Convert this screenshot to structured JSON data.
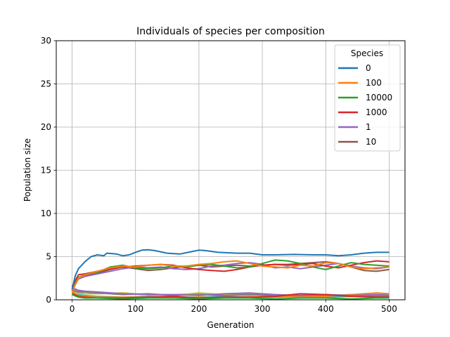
{
  "chart_data": {
    "type": "line",
    "title": "Individuals of species per composition",
    "xlabel": "Generation",
    "ylabel": "Population size",
    "xlim": [
      -25,
      525
    ],
    "ylim": [
      0,
      30
    ],
    "xticks": [
      0,
      100,
      200,
      300,
      400,
      500
    ],
    "yticks": [
      0,
      5,
      10,
      15,
      20,
      25,
      30
    ],
    "grid": true,
    "legend": {
      "title": "Species",
      "placement": "top-right"
    },
    "series": [
      {
        "name": "0",
        "color": "#1f77b4",
        "x": [
          0,
          5,
          10,
          20,
          30,
          40,
          50,
          55,
          70,
          80,
          90,
          100,
          110,
          120,
          130,
          150,
          170,
          190,
          200,
          210,
          230,
          260,
          280,
          300,
          320,
          350,
          380,
          400,
          420,
          440,
          460,
          480,
          500
        ],
        "y": [
          1.2,
          2.8,
          3.6,
          4.4,
          5.0,
          5.2,
          5.1,
          5.4,
          5.3,
          5.1,
          5.2,
          5.5,
          5.75,
          5.8,
          5.7,
          5.4,
          5.3,
          5.6,
          5.75,
          5.7,
          5.5,
          5.4,
          5.4,
          5.2,
          5.2,
          5.25,
          5.2,
          5.2,
          5.1,
          5.2,
          5.4,
          5.5,
          5.5
        ]
      },
      {
        "name": "100",
        "color": "#ff7f0e",
        "x": [
          0,
          10,
          20,
          40,
          60,
          80,
          100,
          120,
          140,
          160,
          180,
          200,
          220,
          240,
          260,
          280,
          300,
          320,
          340,
          360,
          380,
          400,
          420,
          440,
          460,
          480,
          500
        ],
        "y": [
          1.0,
          2.5,
          2.9,
          3.3,
          3.7,
          3.9,
          3.8,
          4.0,
          4.1,
          3.9,
          3.9,
          4.1,
          4.2,
          4.4,
          4.5,
          4.2,
          3.9,
          3.8,
          3.7,
          4.0,
          3.9,
          4.3,
          4.2,
          3.8,
          3.6,
          3.7,
          3.8
        ]
      },
      {
        "name": "10000",
        "color": "#2ca02c",
        "x": [
          0,
          10,
          20,
          40,
          60,
          80,
          100,
          120,
          140,
          160,
          180,
          200,
          220,
          240,
          260,
          280,
          300,
          320,
          340,
          360,
          380,
          400,
          420,
          440,
          460,
          480,
          500
        ],
        "y": [
          1.1,
          2.6,
          2.9,
          3.2,
          3.8,
          4.0,
          3.7,
          3.6,
          3.7,
          3.9,
          3.8,
          4.0,
          4.1,
          3.9,
          3.7,
          3.8,
          4.2,
          4.6,
          4.5,
          4.2,
          3.8,
          3.5,
          3.9,
          4.3,
          4.1,
          4.0,
          3.9
        ]
      },
      {
        "name": "1000",
        "color": "#d62728",
        "x": [
          0,
          10,
          20,
          40,
          60,
          80,
          100,
          120,
          140,
          160,
          180,
          200,
          220,
          240,
          260,
          280,
          300,
          320,
          340,
          360,
          380,
          400,
          420,
          440,
          460,
          480,
          500
        ],
        "y": [
          1.5,
          2.9,
          3.0,
          3.3,
          3.6,
          3.8,
          3.9,
          4.0,
          4.1,
          4.0,
          3.7,
          3.5,
          3.4,
          3.3,
          3.5,
          3.8,
          4.0,
          4.1,
          4.0,
          4.1,
          4.2,
          3.9,
          3.7,
          4.0,
          4.3,
          4.5,
          4.4
        ]
      },
      {
        "name": "1",
        "color": "#9467bd",
        "x": [
          0,
          10,
          20,
          40,
          60,
          80,
          100,
          120,
          140,
          160,
          180,
          200,
          220,
          240,
          260,
          280,
          300,
          320,
          340,
          360,
          380,
          400,
          420,
          440,
          460,
          480,
          500
        ],
        "y": [
          1.2,
          2.4,
          2.7,
          3.0,
          3.3,
          3.6,
          3.8,
          3.7,
          3.8,
          3.6,
          3.5,
          3.6,
          3.9,
          4.0,
          4.2,
          4.3,
          4.1,
          3.7,
          3.8,
          3.6,
          3.8,
          4.0,
          4.2,
          3.9,
          3.7,
          3.6,
          3.8
        ]
      },
      {
        "name": "10",
        "color": "#8c564b",
        "x": [
          0,
          10,
          20,
          40,
          60,
          80,
          100,
          120,
          140,
          160,
          180,
          200,
          220,
          240,
          260,
          280,
          300,
          320,
          340,
          360,
          380,
          400,
          420,
          440,
          460,
          480,
          500
        ],
        "y": [
          1.0,
          2.5,
          2.8,
          3.1,
          3.5,
          3.8,
          3.6,
          3.4,
          3.5,
          3.7,
          3.9,
          4.0,
          3.8,
          3.9,
          4.0,
          3.9,
          4.0,
          4.1,
          4.1,
          4.2,
          4.3,
          4.4,
          4.2,
          3.8,
          3.4,
          3.3,
          3.5
        ]
      }
    ],
    "background_series": [
      {
        "color": "#e377c2",
        "x": [
          0,
          10,
          20,
          40,
          80,
          120,
          160,
          200,
          240,
          280,
          320,
          360,
          400,
          440,
          480,
          500
        ],
        "y": [
          1.3,
          1.0,
          0.9,
          0.8,
          0.7,
          0.6,
          0.6,
          0.7,
          0.6,
          0.7,
          0.6,
          0.5,
          0.6,
          0.5,
          0.6,
          0.6
        ]
      },
      {
        "color": "#bcbd22",
        "x": [
          0,
          10,
          20,
          40,
          80,
          120,
          160,
          200,
          240,
          280,
          320,
          360,
          400,
          440,
          480,
          500
        ],
        "y": [
          1.0,
          0.8,
          0.7,
          0.7,
          0.8,
          0.6,
          0.5,
          0.8,
          0.6,
          0.5,
          0.6,
          0.4,
          0.5,
          0.6,
          0.5,
          0.4
        ]
      },
      {
        "color": "#17becf",
        "x": [
          0,
          10,
          20,
          40,
          80,
          120,
          160,
          200,
          240,
          280,
          320,
          360,
          400,
          440,
          480,
          500
        ],
        "y": [
          0.8,
          0.6,
          0.5,
          0.4,
          0.3,
          0.4,
          0.3,
          0.3,
          0.4,
          0.3,
          0.3,
          0.4,
          0.3,
          0.4,
          0.5,
          0.7
        ]
      },
      {
        "color": "#7f7f7f",
        "x": [
          0,
          10,
          20,
          40,
          80,
          120,
          160,
          200,
          240,
          280,
          320,
          360,
          400,
          440,
          480,
          500
        ],
        "y": [
          1.1,
          0.9,
          0.9,
          0.8,
          0.6,
          0.7,
          0.5,
          0.6,
          0.5,
          0.6,
          0.5,
          0.5,
          0.5,
          0.5,
          0.4,
          0.4
        ]
      },
      {
        "color": "#ff7f0e",
        "x": [
          0,
          10,
          20,
          40,
          80,
          120,
          160,
          200,
          240,
          280,
          320,
          360,
          400,
          440,
          480,
          500
        ],
        "y": [
          0.9,
          0.5,
          0.4,
          0.3,
          0.3,
          0.3,
          0.2,
          0.3,
          0.2,
          0.3,
          0.4,
          0.3,
          0.4,
          0.6,
          0.8,
          0.7
        ]
      },
      {
        "color": "#9467bd",
        "x": [
          0,
          10,
          20,
          40,
          80,
          120,
          160,
          200,
          240,
          280,
          320,
          360,
          400,
          440,
          480,
          500
        ],
        "y": [
          1.4,
          1.1,
          1.0,
          0.9,
          0.7,
          0.6,
          0.6,
          0.5,
          0.7,
          0.8,
          0.6,
          0.5,
          0.6,
          0.5,
          0.6,
          0.5
        ]
      },
      {
        "color": "#d62728",
        "x": [
          0,
          10,
          20,
          40,
          80,
          120,
          160,
          200,
          240,
          280,
          320,
          360,
          400,
          440,
          480,
          500
        ],
        "y": [
          0.7,
          0.4,
          0.3,
          0.2,
          0.2,
          0.3,
          0.4,
          0.2,
          0.3,
          0.3,
          0.4,
          0.7,
          0.6,
          0.4,
          0.3,
          0.3
        ]
      },
      {
        "color": "#2ca02c",
        "x": [
          0,
          10,
          20,
          40,
          80,
          120,
          160,
          200,
          240,
          280,
          320,
          360,
          400,
          440,
          480,
          500
        ],
        "y": [
          0.6,
          0.3,
          0.2,
          0.2,
          0.1,
          0.2,
          0.2,
          0.1,
          0.2,
          0.2,
          0.1,
          0.2,
          0.2,
          0.1,
          0.2,
          0.2
        ]
      }
    ]
  }
}
